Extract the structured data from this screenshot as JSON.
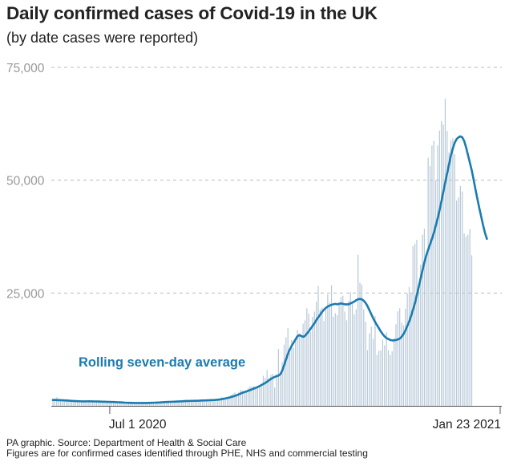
{
  "header": {
    "title": "Daily confirmed cases of Covid-19 in the UK",
    "subtitle": "(by date cases were reported)"
  },
  "footer": {
    "source": "PA graphic. Source: Department of Health & Social Care",
    "note": "Figures are for confirmed cases identified through PHE, NHS and commercial testing"
  },
  "colors": {
    "bars": "#b8c9d8",
    "average_line": "#1b7bb0",
    "annotation": "#1b7bb0",
    "gridline": "#bbbbbb",
    "axis_text": "#999999",
    "date_text": "#222222"
  },
  "chart_data": {
    "type": "bar",
    "ylim": [
      0,
      75000
    ],
    "yticks": [
      "75,000",
      "50,000",
      "25,000"
    ],
    "ytick_values": [
      75000,
      50000,
      25000
    ],
    "grid": true,
    "xlim": [
      "2020-06-01",
      "2021-01-23"
    ],
    "x_tick_labels": [
      "Jul 1 2020",
      "Jan 23 2021"
    ],
    "x_tick_dates": [
      "2020-07-01",
      "2021-01-23"
    ],
    "annotation": "Rolling seven-day average",
    "series": [
      {
        "kind": "bars",
        "values": [
          1570,
          1650,
          1870,
          1690,
          1440,
          1300,
          1200,
          1380,
          1300,
          1100,
          1050,
          1010,
          1000,
          900,
          1010,
          950,
          1000,
          1110,
          1120,
          1200,
          1080,
          950,
          880,
          1100,
          1000,
          1010,
          930,
          820,
          820,
          820,
          900,
          890,
          920,
          810,
          730,
          700,
          750,
          800,
          620,
          580,
          700,
          610,
          660,
          620,
          640,
          660,
          600,
          590,
          540,
          660,
          650,
          700,
          530,
          720,
          780,
          790,
          810,
          880,
          870,
          940,
          850,
          930,
          950,
          1000,
          1030,
          1040,
          1010,
          1070,
          1100,
          1230,
          1400,
          1200,
          1090,
          1100,
          1240,
          1080,
          1110,
          1080,
          1140,
          1200,
          1300,
          1260,
          1390,
          1100,
          1300,
          1400,
          1270,
          1420,
          1600,
          1910,
          1880,
          1800,
          1600,
          1940,
          2420,
          2730,
          2970,
          2300,
          2970,
          3540,
          3340,
          3250,
          3310,
          3930,
          4300,
          4260,
          4420,
          3900,
          4020,
          4360,
          4840,
          6650,
          6160,
          7940,
          6200,
          6880,
          7100,
          4050,
          7140,
          12600,
          6910,
          9710,
          13560,
          15160,
          17260,
          11690,
          14600,
          12850,
          14380,
          16850,
          15460,
          15650,
          18190,
          18940,
          21600,
          20430,
          16370,
          19720,
          20890,
          23070,
          26570,
          21360,
          21790,
          18800,
          21250,
          24700,
          22890,
          26700,
          19790,
          20550,
          20080,
          22950,
          24140,
          24400,
          20920,
          18950,
          23250,
          25180,
          23020,
          20250,
          21370,
          33470,
          27300,
          26860,
          21360,
          18660,
          12320,
          16030,
          17550,
          14880,
          19870,
          11300,
          12150,
          12280,
          14620,
          13430,
          16310,
          12370,
          11300,
          12070,
          14990,
          18080,
          20940,
          21650,
          18450,
          17880,
          21500,
          24880,
          26290,
          25160,
          35400,
          35930,
          36800,
          27000,
          31290,
          37930,
          39240,
          33360,
          54990,
          53130,
          57700,
          58700,
          50000,
          57700,
          61000,
          63100,
          62300,
          68050,
          60900,
          56130,
          58800,
          59300,
          55800,
          45500,
          46170,
          48700,
          47500,
          38200,
          37500,
          37900,
          39200,
          33350
        ],
        "note": "daily reported cases, one bar per day"
      },
      {
        "name": "Rolling seven-day average",
        "kind": "line",
        "values": [
          1300,
          1300,
          1280,
          1260,
          1250,
          1230,
          1210,
          1190,
          1160,
          1130,
          1100,
          1080,
          1060,
          1040,
          1020,
          1000,
          990,
          990,
          1000,
          1010,
          1000,
          990,
          980,
          970,
          960,
          950,
          930,
          920,
          900,
          880,
          870,
          860,
          850,
          830,
          800,
          780,
          760,
          740,
          710,
          690,
          670,
          660,
          650,
          640,
          640,
          630,
          630,
          630,
          630,
          640,
          650,
          660,
          670,
          690,
          710,
          730,
          750,
          780,
          800,
          830,
          850,
          870,
          890,
          910,
          930,
          950,
          970,
          990,
          1010,
          1040,
          1060,
          1080,
          1090,
          1100,
          1110,
          1120,
          1130,
          1140,
          1160,
          1180,
          1200,
          1220,
          1240,
          1260,
          1270,
          1290,
          1320,
          1360,
          1410,
          1480,
          1560,
          1640,
          1730,
          1830,
          1950,
          2070,
          2200,
          2360,
          2530,
          2720,
          2900,
          3050,
          3180,
          3320,
          3490,
          3660,
          3820,
          3990,
          4160,
          4380,
          4600,
          4830,
          5060,
          5350,
          5650,
          5950,
          6200,
          6400,
          6560,
          6700,
          7000,
          7800,
          9000,
          10300,
          11500,
          12500,
          13300,
          14000,
          14700,
          15400,
          15700,
          15500,
          15300,
          15500,
          16000,
          16500,
          17100,
          17700,
          18300,
          19000,
          19600,
          20200,
          20800,
          21300,
          21700,
          22000,
          22200,
          22400,
          22500,
          22600,
          22500,
          22600,
          22700,
          22600,
          22500,
          22500,
          22500,
          22700,
          22900,
          23100,
          23400,
          23600,
          23700,
          23600,
          23300,
          22800,
          22100,
          21200,
          20300,
          19400,
          18600,
          17900,
          17200,
          16500,
          15900,
          15400,
          15000,
          14800,
          14600,
          14500,
          14500,
          14600,
          14700,
          14900,
          15300,
          15900,
          16700,
          17700,
          18700,
          19900,
          21300,
          22700,
          24500,
          26300,
          28200,
          30000,
          31800,
          33300,
          34600,
          35800,
          37000,
          38300,
          39900,
          41500,
          43300,
          45300,
          47400,
          49500,
          51500,
          53500,
          55500,
          57000,
          58300,
          59100,
          59500,
          59700,
          59500,
          58700,
          57300,
          55600,
          53900,
          52200,
          50100,
          47900,
          45800,
          43800,
          41900,
          40000,
          38300,
          37000
        ],
        "note": "rolling seven-day average of daily cases"
      }
    ]
  }
}
